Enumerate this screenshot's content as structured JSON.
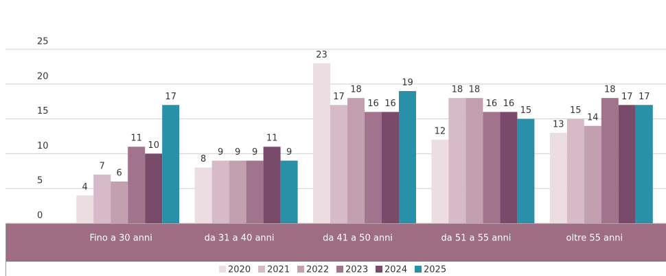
{
  "chart_data": {
    "type": "bar",
    "categories": [
      "Fino a 30 anni",
      "da 31 a 40 anni",
      "da 41 a 50 anni",
      "da 51 a 55 anni",
      "oltre 55 anni"
    ],
    "series": [
      {
        "name": "2020",
        "color": "#ecdde3",
        "values": [
          4,
          8,
          23,
          12,
          13
        ]
      },
      {
        "name": "2021",
        "color": "#d6bac7",
        "values": [
          7,
          9,
          17,
          18,
          15
        ]
      },
      {
        "name": "2022",
        "color": "#c3a0b0",
        "values": [
          6,
          9,
          18,
          18,
          14
        ]
      },
      {
        "name": "2023",
        "color": "#a1738c",
        "values": [
          11,
          9,
          16,
          16,
          18
        ]
      },
      {
        "name": "2024",
        "color": "#7a4a6a",
        "values": [
          10,
          11,
          16,
          16,
          17
        ]
      },
      {
        "name": "2025",
        "color": "#2a8fa8",
        "values": [
          17,
          9,
          19,
          15,
          17
        ]
      }
    ],
    "ylim": [
      0,
      25
    ],
    "yticks": [
      0,
      5,
      10,
      15,
      20,
      25
    ],
    "grid": true,
    "legend": "bottom"
  }
}
